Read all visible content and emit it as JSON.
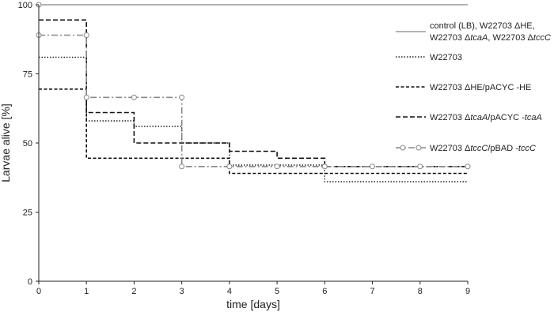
{
  "chart_data": {
    "type": "line",
    "step": true,
    "title": "",
    "xlabel": "time [days]",
    "ylabel": "Larvae alive [%]",
    "xlim": [
      0,
      9
    ],
    "ylim": [
      0,
      100
    ],
    "x_ticks": [
      "0",
      "1",
      "2",
      "3",
      "4",
      "5",
      "6",
      "7",
      "8",
      "9"
    ],
    "y_ticks": [
      "0",
      "25",
      "50",
      "75",
      "100"
    ],
    "legend_position": "right",
    "series": [
      {
        "name": "control (LB), W22703 ΔHE, W22703 ΔtcaA, W22703 ΔtccC",
        "legend_lines": [
          [
            {
              "t": "control (LB), W22703 ΔHE,"
            }
          ],
          [
            {
              "t": "W22703 Δ"
            },
            {
              "t": "tcaA",
              "i": true
            },
            {
              "t": ", W22703 Δ"
            },
            {
              "t": "tccC",
              "i": true
            }
          ]
        ],
        "color": "#999999",
        "style": "solid",
        "marker": "none",
        "x": [
          0,
          9
        ],
        "values": [
          100,
          100
        ]
      },
      {
        "name": "W22703",
        "legend_lines": [
          [
            {
              "t": "W22703"
            }
          ]
        ],
        "color": "#222222",
        "style": "dotted",
        "marker": "none",
        "x": [
          0,
          1,
          2,
          3,
          4,
          6,
          9
        ],
        "values": [
          81,
          58,
          56,
          50,
          42,
          36,
          36
        ]
      },
      {
        "name": "W22703 ΔHE/pACYC -HE",
        "legend_lines": [
          [
            {
              "t": "W22703 ΔHE/pACYC -HE"
            }
          ]
        ],
        "color": "#111111",
        "style": "dashed-short",
        "marker": "none",
        "x": [
          0,
          1,
          4,
          9
        ],
        "values": [
          69.5,
          44.5,
          39,
          39
        ]
      },
      {
        "name": "W22703 ΔtcaA/pACYC -tcaA",
        "legend_lines": [
          [
            {
              "t": "W22703 Δ"
            },
            {
              "t": "tcaA",
              "i": true
            },
            {
              "t": "/pACYC -"
            },
            {
              "t": "tcaA",
              "i": true
            }
          ]
        ],
        "color": "#111111",
        "style": "dashed-long",
        "marker": "none",
        "x": [
          0,
          1,
          2,
          4,
          5,
          6,
          9
        ],
        "values": [
          94.5,
          61,
          50,
          47,
          44.5,
          41.5,
          41.5
        ]
      },
      {
        "name": "W22703 ΔtccC/pBAD -tccC",
        "legend_lines": [
          [
            {
              "t": "W22703 Δ"
            },
            {
              "t": "tccC",
              "i": true
            },
            {
              "t": "/pBAD -"
            },
            {
              "t": "tccC",
              "i": true
            }
          ]
        ],
        "color": "#888888",
        "style": "dashdot",
        "marker": "circle",
        "x": [
          0,
          1,
          3,
          9
        ],
        "values": [
          89,
          66.5,
          41.5,
          41.5
        ],
        "marker_points": {
          "x": [
            0,
            0,
            1,
            1,
            2,
            3,
            3,
            4,
            5,
            6,
            7,
            8,
            9
          ],
          "y": [
            100,
            89,
            89,
            66.5,
            66.5,
            66.5,
            41.5,
            41.5,
            41.5,
            41.5,
            41.5,
            41.5,
            41.5
          ]
        }
      }
    ]
  }
}
